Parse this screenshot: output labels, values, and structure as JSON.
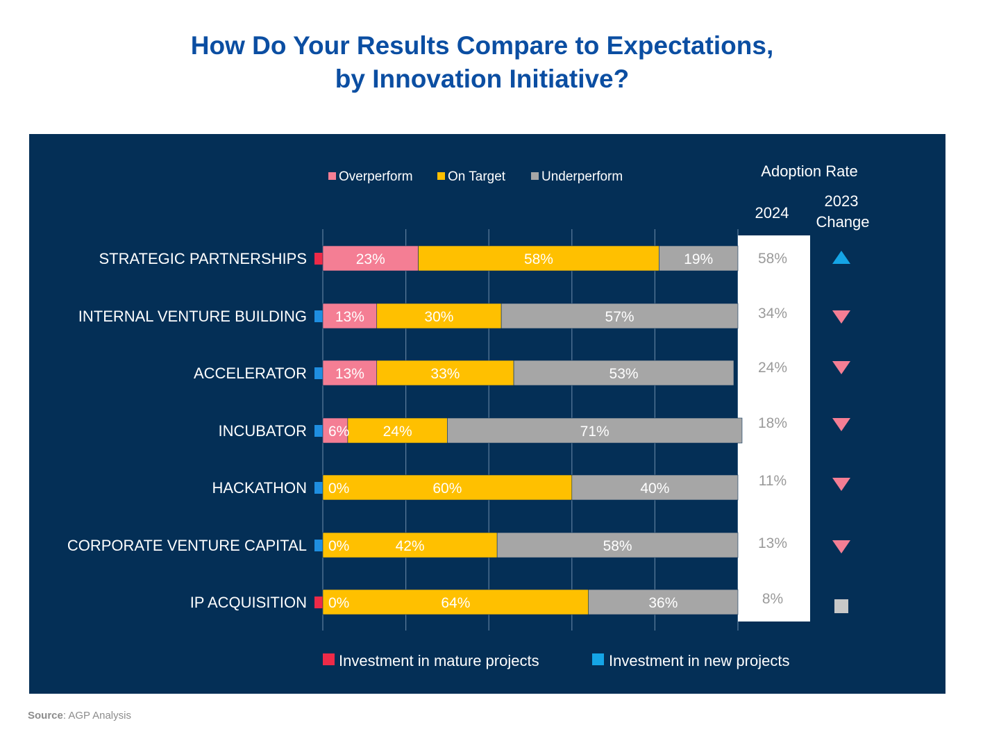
{
  "title": {
    "line1": "How Do Your Results Compare to Expectations,",
    "line2": "by Innovation Initiative?"
  },
  "source": {
    "label": "Source",
    "text": ": AGP Analysis"
  },
  "colors": {
    "overperform": "#f47e94",
    "on_target": "#ffc000",
    "underperform": "#a6a6a6",
    "mature": "#ee2a48",
    "new": "#1f8ee0",
    "up_arrow": "#15a5e6",
    "down_arrow": "#f47e94",
    "neutral": "#c8c8c8"
  },
  "chart_data": {
    "type": "bar",
    "orientation": "horizontal",
    "stacked": true,
    "xlim": [
      0,
      100
    ],
    "categories": [
      "STRATEGIC PARTNERSHIPS",
      "INTERNAL VENTURE BUILDING",
      "ACCELERATOR",
      "INCUBATOR",
      "HACKATHON",
      "CORPORATE VENTURE CAPITAL",
      "IP ACQUISITION"
    ],
    "series": [
      {
        "name": "Overperform",
        "values": [
          23,
          13,
          13,
          6,
          0,
          0,
          0
        ]
      },
      {
        "name": "On Target",
        "values": [
          58,
          30,
          33,
          24,
          60,
          42,
          64
        ]
      },
      {
        "name": "Underperform",
        "values": [
          19,
          57,
          53,
          71,
          40,
          58,
          36
        ]
      }
    ],
    "investment_type": [
      "mature",
      "new",
      "new",
      "new",
      "new",
      "new",
      "mature"
    ],
    "investment_legend": {
      "mature": "Investment in mature projects",
      "new": "Investment in new projects"
    },
    "adoption_rate": {
      "header": "Adoption Rate",
      "year_label": "2024",
      "change_label_line1": "2023",
      "change_label_line2": "Change",
      "values": [
        "58%",
        "34%",
        "24%",
        "18%",
        "11%",
        "13%",
        "8%"
      ],
      "change": [
        "up",
        "down",
        "down",
        "down",
        "down",
        "down",
        "same"
      ]
    },
    "legend_position": "top"
  }
}
